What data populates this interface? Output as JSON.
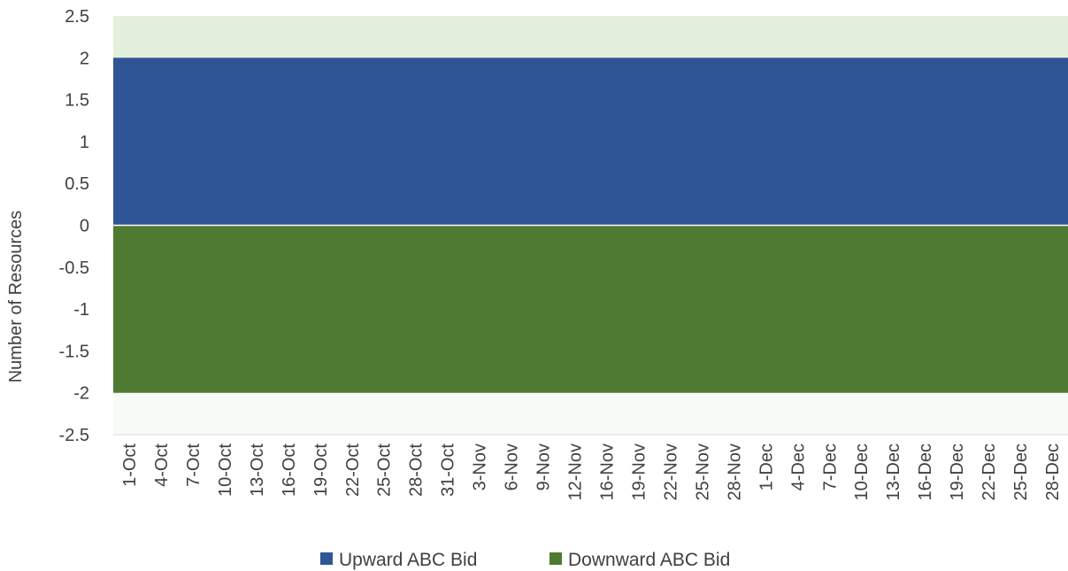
{
  "chart_data": {
    "type": "area",
    "title": "",
    "xlabel": "",
    "ylabel": "Number of Resources",
    "ylim": [
      -2.5,
      2.5
    ],
    "yticks": [
      "2.5",
      "2",
      "1.5",
      "1",
      "0.5",
      "0",
      "-0.5",
      "-1",
      "-1.5",
      "-2",
      "-2.5"
    ],
    "categories": [
      "1-Oct",
      "4-Oct",
      "7-Oct",
      "10-Oct",
      "13-Oct",
      "16-Oct",
      "19-Oct",
      "22-Oct",
      "25-Oct",
      "28-Oct",
      "31-Oct",
      "3-Nov",
      "6-Nov",
      "9-Nov",
      "12-Nov",
      "16-Nov",
      "19-Nov",
      "22-Nov",
      "25-Nov",
      "28-Nov",
      "1-Dec",
      "4-Dec",
      "7-Dec",
      "10-Dec",
      "13-Dec",
      "16-Dec",
      "19-Dec",
      "22-Dec",
      "25-Dec",
      "28-Dec"
    ],
    "series": [
      {
        "name": "Upward ABC Bid",
        "color": "#2f5597",
        "values": [
          2,
          2,
          2,
          2,
          2,
          2,
          2,
          2,
          2,
          2,
          2,
          2,
          2,
          2,
          2,
          2,
          2,
          2,
          2,
          2,
          2,
          2,
          2,
          2,
          2,
          2,
          2,
          2,
          2,
          2
        ]
      },
      {
        "name": "Downward ABC Bid",
        "color": "#4e7a31",
        "values": [
          -2,
          -2,
          -2,
          -2,
          -2,
          -2,
          -2,
          -2,
          -2,
          -2,
          -2,
          -2,
          -2,
          -2,
          -2,
          -2,
          -2,
          -2,
          -2,
          -2,
          -2,
          -2,
          -2,
          -2,
          -2,
          -2,
          -2,
          -2,
          -2,
          -2
        ]
      }
    ],
    "background_bands": {
      "upper_color": "#e2efda",
      "lower_color": "#f7faf5"
    },
    "grid": false,
    "legend_position": "bottom"
  }
}
